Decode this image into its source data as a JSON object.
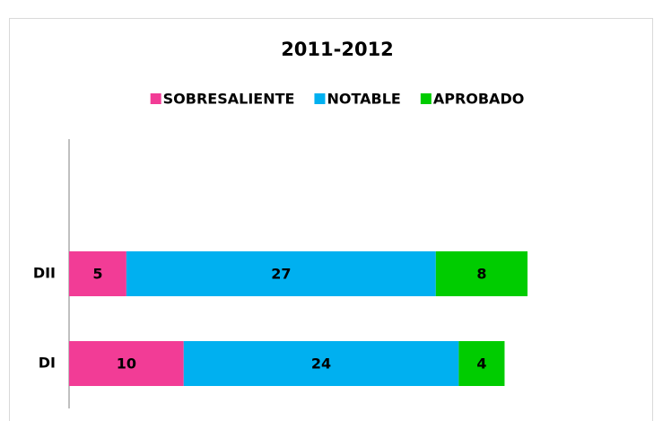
{
  "chart_data": {
    "type": "stacked-bar-horizontal",
    "title": "2011-2012",
    "categories": [
      "DI",
      "DII"
    ],
    "series": [
      {
        "name": "SOBRESALIENTE",
        "color": "#f23c96",
        "values": [
          10,
          5
        ]
      },
      {
        "name": "NOTABLE",
        "color": "#00b0f0",
        "values": [
          24,
          27
        ]
      },
      {
        "name": "APROBADO",
        "color": "#00cc00",
        "values": [
          4,
          8
        ]
      }
    ],
    "legend": "top"
  }
}
